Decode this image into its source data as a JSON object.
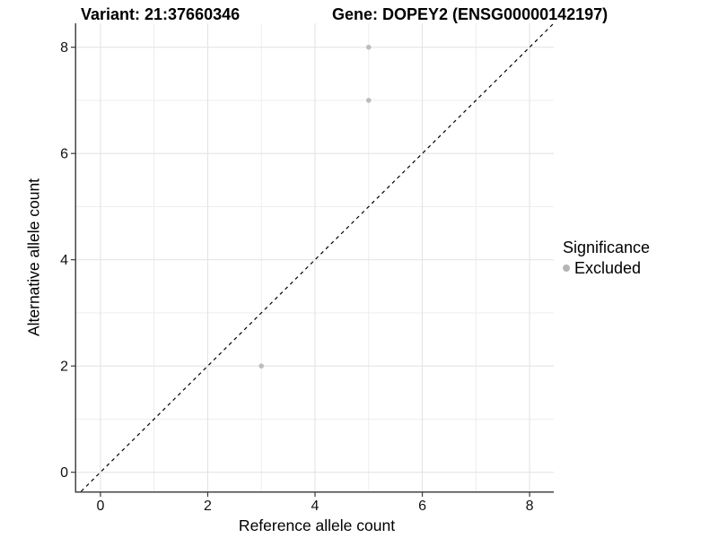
{
  "chart_data": {
    "type": "scatter",
    "titles": {
      "left": "Variant: 21:37660346",
      "right": "Gene: DOPEY2 (ENSG00000142197)"
    },
    "xlabel": "Reference allele count",
    "ylabel": "Alternative allele count",
    "xlim": [
      -0.45,
      8.45
    ],
    "ylim": [
      -0.36,
      8.45
    ],
    "xticks": [
      0,
      2,
      4,
      6,
      8
    ],
    "yticks": [
      0,
      2,
      4,
      6,
      8
    ],
    "xminor": [
      1,
      3,
      5,
      7
    ],
    "yminor": [
      1,
      3,
      5,
      7
    ],
    "grid": {
      "major_color": "#e4e4e4",
      "minor_color": "#ededed"
    },
    "axis": {
      "line_color": "#444444",
      "tick_color": "#3a3a3a",
      "tick_label_color": "#111111"
    },
    "identity_line": {
      "slope": 1,
      "intercept": 0,
      "style": "dashed",
      "color": "#000000"
    },
    "series": [
      {
        "name": "Excluded",
        "color": "#bcbcbc",
        "points": [
          [
            5,
            8
          ],
          [
            5,
            7
          ],
          [
            3,
            2
          ]
        ]
      }
    ],
    "legend": {
      "title": "Significance",
      "position": "right",
      "entries": [
        {
          "label": "Excluded",
          "color": "#b5b5b5"
        }
      ]
    }
  }
}
